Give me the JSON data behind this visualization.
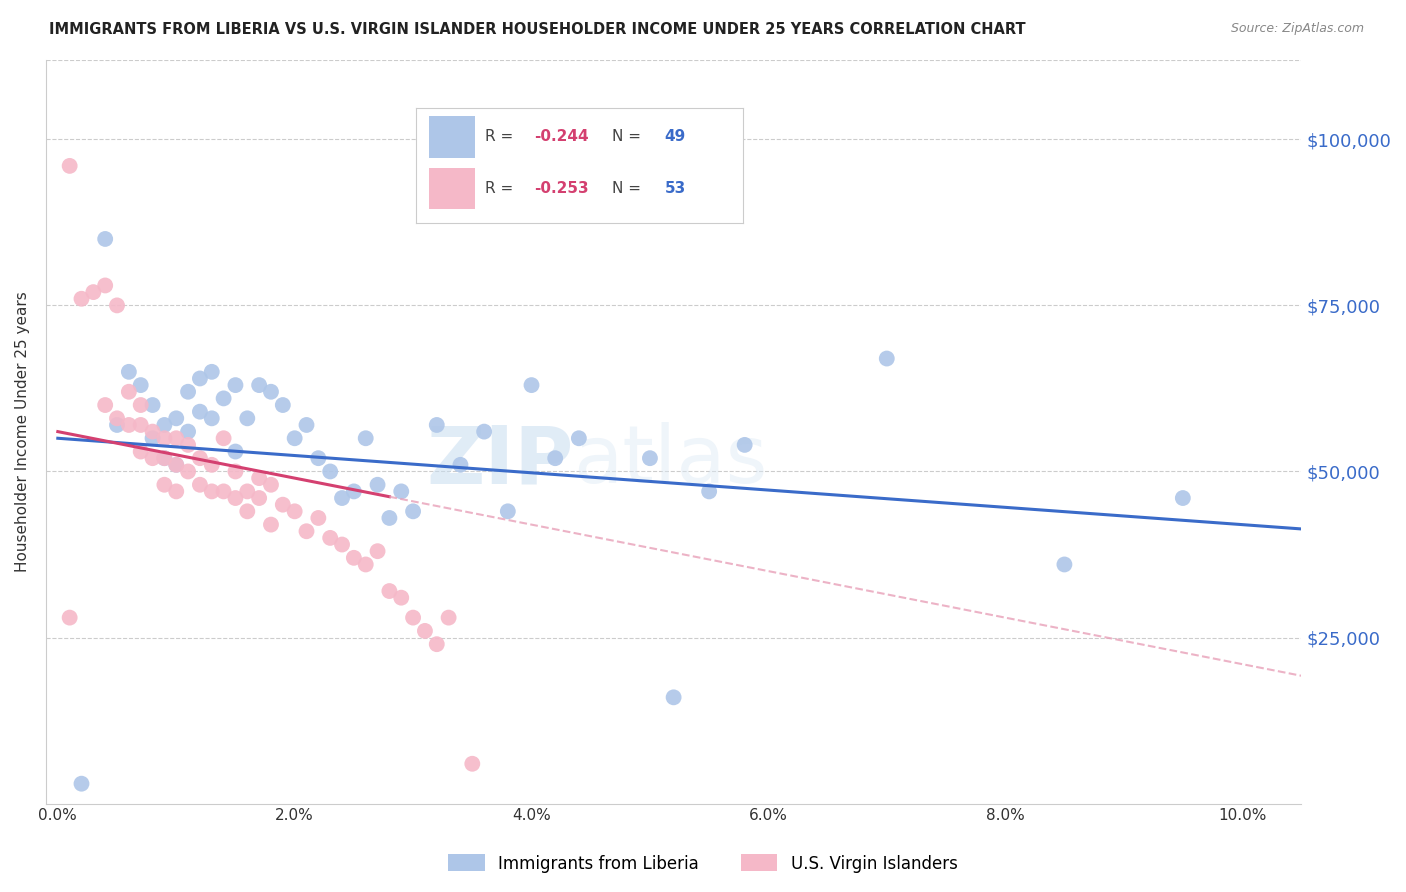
{
  "title": "IMMIGRANTS FROM LIBERIA VS U.S. VIRGIN ISLANDER HOUSEHOLDER INCOME UNDER 25 YEARS CORRELATION CHART",
  "source": "Source: ZipAtlas.com",
  "ylabel": "Householder Income Under 25 years",
  "xlabel_ticks": [
    "0.0%",
    "2.0%",
    "4.0%",
    "6.0%",
    "8.0%",
    "10.0%"
  ],
  "xlabel_values": [
    0.0,
    0.02,
    0.04,
    0.06,
    0.08,
    0.1
  ],
  "ytick_labels": [
    "$25,000",
    "$50,000",
    "$75,000",
    "$100,000"
  ],
  "ytick_values": [
    25000,
    50000,
    75000,
    100000
  ],
  "ylim": [
    0,
    112000
  ],
  "xlim": [
    -0.001,
    0.105
  ],
  "legend_r_blue": "-0.244",
  "legend_n_blue": "49",
  "legend_r_pink": "-0.253",
  "legend_n_pink": "53",
  "blue_color": "#aec6e8",
  "pink_color": "#f5b8c8",
  "trend_blue": "#3a6bc9",
  "trend_pink": "#d44070",
  "trend_pink_dash_color": "#e8a0b8",
  "watermark": "ZIPatlas",
  "blue_scatter_x": [
    0.002,
    0.004,
    0.005,
    0.006,
    0.007,
    0.008,
    0.008,
    0.009,
    0.009,
    0.01,
    0.01,
    0.011,
    0.011,
    0.012,
    0.012,
    0.013,
    0.013,
    0.014,
    0.015,
    0.015,
    0.016,
    0.017,
    0.018,
    0.019,
    0.02,
    0.021,
    0.022,
    0.023,
    0.024,
    0.025,
    0.026,
    0.027,
    0.028,
    0.029,
    0.03,
    0.032,
    0.034,
    0.036,
    0.038,
    0.04,
    0.042,
    0.044,
    0.05,
    0.052,
    0.055,
    0.058,
    0.07,
    0.085,
    0.095
  ],
  "blue_scatter_y": [
    3000,
    85000,
    57000,
    65000,
    63000,
    60000,
    55000,
    57000,
    52000,
    58000,
    51000,
    62000,
    56000,
    64000,
    59000,
    65000,
    58000,
    61000,
    63000,
    53000,
    58000,
    63000,
    62000,
    60000,
    55000,
    57000,
    52000,
    50000,
    46000,
    47000,
    55000,
    48000,
    43000,
    47000,
    44000,
    57000,
    51000,
    56000,
    44000,
    63000,
    52000,
    55000,
    52000,
    16000,
    47000,
    54000,
    67000,
    36000,
    46000
  ],
  "pink_scatter_x": [
    0.001,
    0.001,
    0.002,
    0.003,
    0.004,
    0.004,
    0.005,
    0.005,
    0.006,
    0.006,
    0.007,
    0.007,
    0.007,
    0.008,
    0.008,
    0.009,
    0.009,
    0.009,
    0.01,
    0.01,
    0.01,
    0.011,
    0.011,
    0.012,
    0.012,
    0.013,
    0.013,
    0.014,
    0.014,
    0.015,
    0.015,
    0.016,
    0.016,
    0.017,
    0.017,
    0.018,
    0.018,
    0.019,
    0.02,
    0.021,
    0.022,
    0.023,
    0.024,
    0.025,
    0.026,
    0.027,
    0.028,
    0.029,
    0.03,
    0.031,
    0.032,
    0.033,
    0.035
  ],
  "pink_scatter_y": [
    96000,
    28000,
    76000,
    77000,
    78000,
    60000,
    75000,
    58000,
    62000,
    57000,
    60000,
    57000,
    53000,
    56000,
    52000,
    55000,
    52000,
    48000,
    55000,
    51000,
    47000,
    54000,
    50000,
    52000,
    48000,
    51000,
    47000,
    55000,
    47000,
    50000,
    46000,
    47000,
    44000,
    49000,
    46000,
    48000,
    42000,
    45000,
    44000,
    41000,
    43000,
    40000,
    39000,
    37000,
    36000,
    38000,
    32000,
    31000,
    28000,
    26000,
    24000,
    28000,
    6000
  ]
}
